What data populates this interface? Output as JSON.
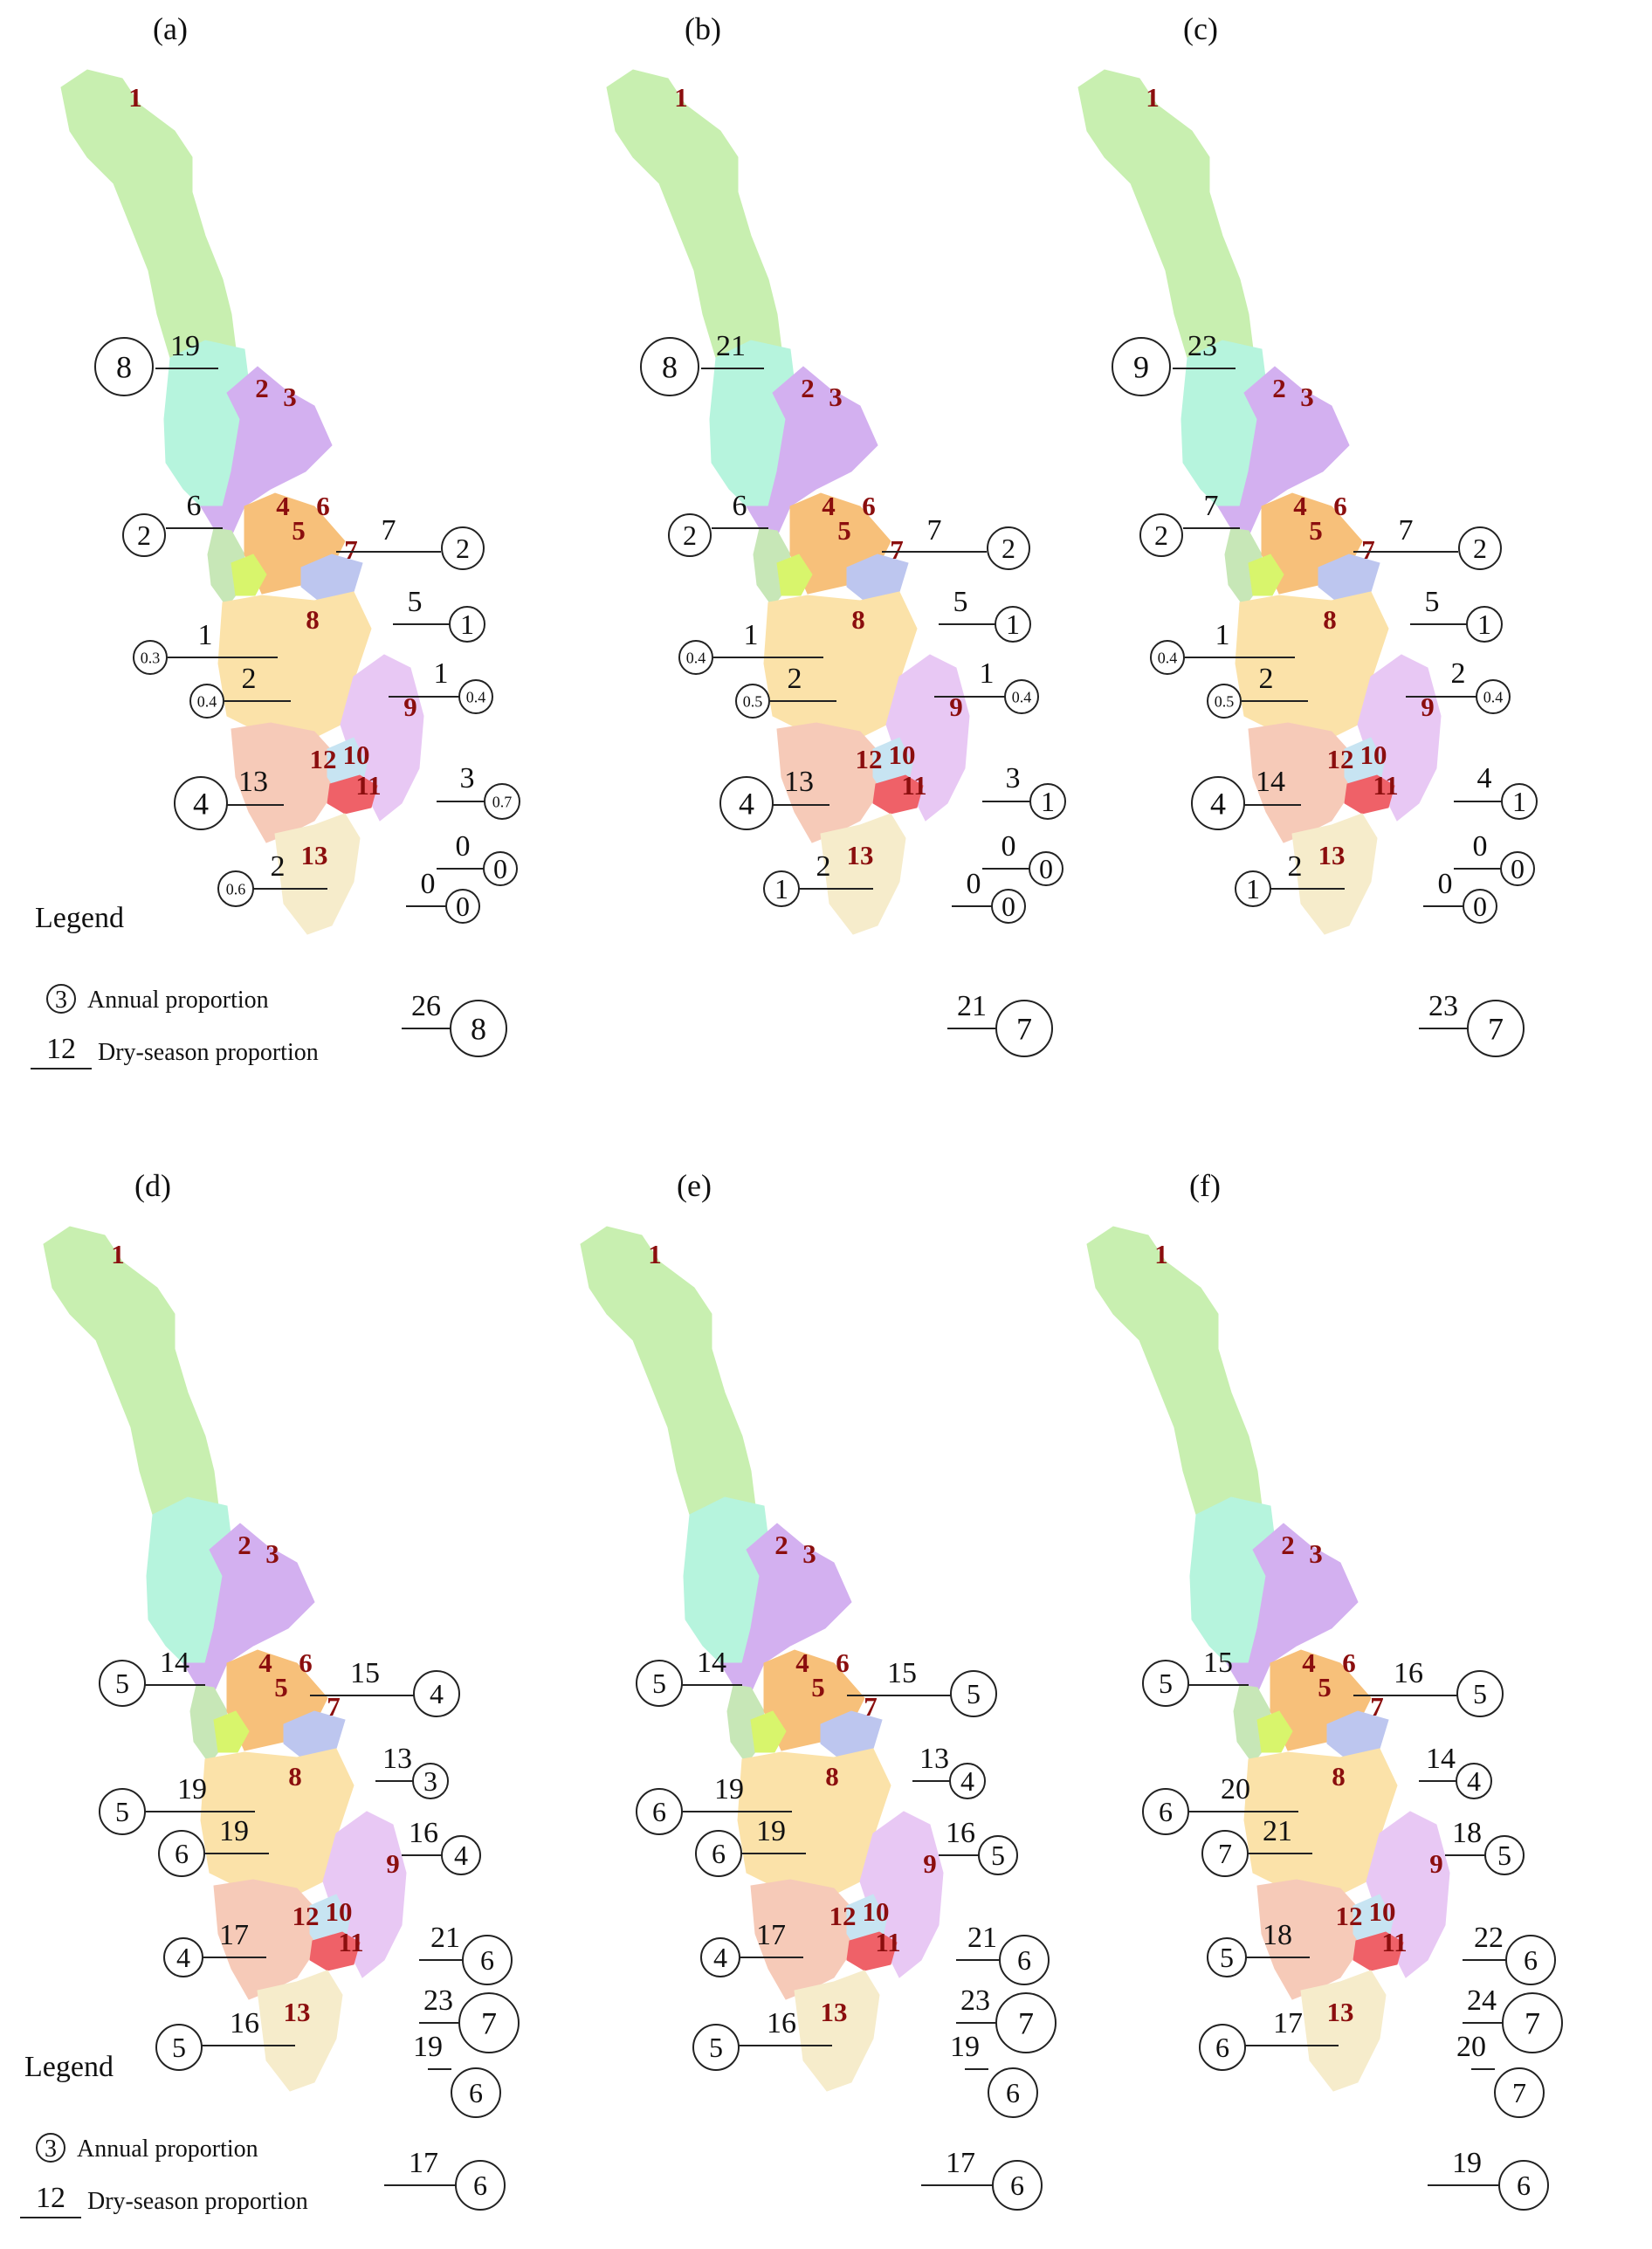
{
  "colors": {
    "r1": "#c8efb0",
    "r2": "#b6f4dd",
    "r3": "#d3b0f0",
    "r4": "#c7e7b7",
    "r5": "#d8f56c",
    "r6": "#f7c07a",
    "r7": "#bdc6ef",
    "r8": "#fbe2a9",
    "r9": "#e8c8f4",
    "r10": "#c7e4f2",
    "r11": "#ef6168",
    "r12": "#f6cab8",
    "r13": "#f6eccb"
  },
  "region_labels": [
    "1",
    "2",
    "3",
    "4",
    "5",
    "6",
    "7",
    "8",
    "9",
    "10",
    "11",
    "12",
    "13"
  ],
  "legend": {
    "title": "Legend",
    "sample_annual": "3",
    "annual_label": "Annual proportion",
    "sample_dry": "12",
    "dry_label": "Dry-season proportion"
  },
  "panels": [
    {
      "label": "(a)",
      "annotations": [
        {
          "region": 1,
          "dry": "19",
          "annual": "8"
        },
        {
          "region": 2,
          "dry": "6",
          "annual": "2"
        },
        {
          "region": 3,
          "dry": "7",
          "annual": "2"
        },
        {
          "region": 4,
          "dry": "1",
          "annual": "0.3"
        },
        {
          "region": 5,
          "dry": "2",
          "annual": "0.4"
        },
        {
          "region": 6,
          "dry": "5",
          "annual": "1"
        },
        {
          "region": 7,
          "dry": "1",
          "annual": "0.4"
        },
        {
          "region": 8,
          "dry": "13",
          "annual": "4"
        },
        {
          "region": 9,
          "dry": "3",
          "annual": "0.7"
        },
        {
          "region": 10,
          "dry": "0",
          "annual": "0"
        },
        {
          "region": 11,
          "dry": "0",
          "annual": "0"
        },
        {
          "region": 12,
          "dry": "2",
          "annual": "0.6"
        },
        {
          "region": 13,
          "dry": "26",
          "annual": "8"
        }
      ]
    },
    {
      "label": "(b)",
      "annotations": [
        {
          "region": 1,
          "dry": "21",
          "annual": "8"
        },
        {
          "region": 2,
          "dry": "6",
          "annual": "2"
        },
        {
          "region": 3,
          "dry": "7",
          "annual": "2"
        },
        {
          "region": 4,
          "dry": "1",
          "annual": "0.4"
        },
        {
          "region": 5,
          "dry": "2",
          "annual": "0.5"
        },
        {
          "region": 6,
          "dry": "5",
          "annual": "1"
        },
        {
          "region": 7,
          "dry": "1",
          "annual": "0.4"
        },
        {
          "region": 8,
          "dry": "13",
          "annual": "4"
        },
        {
          "region": 9,
          "dry": "3",
          "annual": "1"
        },
        {
          "region": 10,
          "dry": "0",
          "annual": "0"
        },
        {
          "region": 11,
          "dry": "0",
          "annual": "0"
        },
        {
          "region": 12,
          "dry": "2",
          "annual": "1"
        },
        {
          "region": 13,
          "dry": "21",
          "annual": "7"
        }
      ]
    },
    {
      "label": "(c)",
      "annotations": [
        {
          "region": 1,
          "dry": "23",
          "annual": "9"
        },
        {
          "region": 2,
          "dry": "7",
          "annual": "2"
        },
        {
          "region": 3,
          "dry": "7",
          "annual": "2"
        },
        {
          "region": 4,
          "dry": "1",
          "annual": "0.4"
        },
        {
          "region": 5,
          "dry": "2",
          "annual": "0.5"
        },
        {
          "region": 6,
          "dry": "5",
          "annual": "1"
        },
        {
          "region": 7,
          "dry": "2",
          "annual": "0.4"
        },
        {
          "region": 8,
          "dry": "14",
          "annual": "4"
        },
        {
          "region": 9,
          "dry": "4",
          "annual": "1"
        },
        {
          "region": 10,
          "dry": "0",
          "annual": "0"
        },
        {
          "region": 11,
          "dry": "0",
          "annual": "0"
        },
        {
          "region": 12,
          "dry": "2",
          "annual": "1"
        },
        {
          "region": 13,
          "dry": "23",
          "annual": "7"
        }
      ]
    },
    {
      "label": "(d)",
      "annotations": [
        {
          "region": 2,
          "dry": "14",
          "annual": "5"
        },
        {
          "region": 3,
          "dry": "15",
          "annual": "4"
        },
        {
          "region": 4,
          "dry": "19",
          "annual": "5"
        },
        {
          "region": 5,
          "dry": "19",
          "annual": "6"
        },
        {
          "region": 6,
          "dry": "13",
          "annual": "3"
        },
        {
          "region": 7,
          "dry": "16",
          "annual": "4"
        },
        {
          "region": 8,
          "dry": "17",
          "annual": "4"
        },
        {
          "region": 9,
          "dry": "21",
          "annual": "6"
        },
        {
          "region": 10,
          "dry": "23",
          "annual": "7"
        },
        {
          "region": 11,
          "dry": "19",
          "annual": "6"
        },
        {
          "region": 12,
          "dry": "16",
          "annual": "5"
        },
        {
          "region": 13,
          "dry": "17",
          "annual": "6"
        }
      ]
    },
    {
      "label": "(e)",
      "annotations": [
        {
          "region": 2,
          "dry": "14",
          "annual": "5"
        },
        {
          "region": 3,
          "dry": "15",
          "annual": "5"
        },
        {
          "region": 4,
          "dry": "19",
          "annual": "6"
        },
        {
          "region": 5,
          "dry": "19",
          "annual": "6"
        },
        {
          "region": 6,
          "dry": "13",
          "annual": "4"
        },
        {
          "region": 7,
          "dry": "16",
          "annual": "5"
        },
        {
          "region": 8,
          "dry": "17",
          "annual": "4"
        },
        {
          "region": 9,
          "dry": "21",
          "annual": "6"
        },
        {
          "region": 10,
          "dry": "23",
          "annual": "7"
        },
        {
          "region": 11,
          "dry": "19",
          "annual": "6"
        },
        {
          "region": 12,
          "dry": "16",
          "annual": "5"
        },
        {
          "region": 13,
          "dry": "17",
          "annual": "6"
        }
      ]
    },
    {
      "label": "(f)",
      "annotations": [
        {
          "region": 2,
          "dry": "15",
          "annual": "5"
        },
        {
          "region": 3,
          "dry": "16",
          "annual": "5"
        },
        {
          "region": 4,
          "dry": "20",
          "annual": "6"
        },
        {
          "region": 5,
          "dry": "21",
          "annual": "7"
        },
        {
          "region": 6,
          "dry": "14",
          "annual": "4"
        },
        {
          "region": 7,
          "dry": "18",
          "annual": "5"
        },
        {
          "region": 8,
          "dry": "18",
          "annual": "5"
        },
        {
          "region": 9,
          "dry": "22",
          "annual": "6"
        },
        {
          "region": 10,
          "dry": "24",
          "annual": "7"
        },
        {
          "region": 11,
          "dry": "20",
          "annual": "7"
        },
        {
          "region": 12,
          "dry": "17",
          "annual": "6"
        },
        {
          "region": 13,
          "dry": "19",
          "annual": "6"
        }
      ]
    }
  ]
}
